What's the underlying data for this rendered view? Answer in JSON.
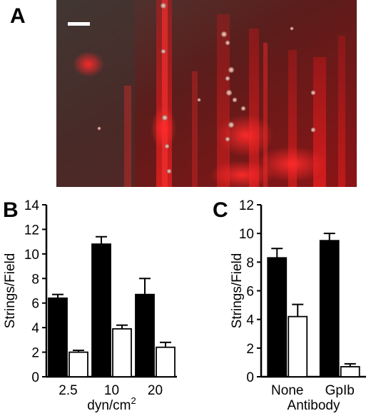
{
  "panels": {
    "a": {
      "letter": "A"
    },
    "b": {
      "letter": "B"
    },
    "c": {
      "letter": "C"
    }
  },
  "colors": {
    "micro_bg": "#3a2a28",
    "micro_red": "#e0161a",
    "filled_bar": "#000000",
    "open_bar": "#ffffff"
  },
  "chart_data": [
    {
      "type": "bar",
      "panel": "B",
      "categories": [
        "2.5",
        "10",
        "20"
      ],
      "series": [
        {
          "values": [
            6.4,
            10.8,
            6.7
          ],
          "errors": [
            0.3,
            0.6,
            1.3
          ],
          "fill": "#000000"
        },
        {
          "values": [
            2.0,
            3.9,
            2.4
          ],
          "errors": [
            0.15,
            0.3,
            0.4
          ],
          "fill": "#ffffff"
        }
      ],
      "xlabel": "dyn/cm",
      "xlabel_sup": "2",
      "ylabel": "Strings/Field",
      "ylim": [
        0,
        14
      ],
      "yticks": [
        0,
        2,
        4,
        6,
        8,
        10,
        12,
        14
      ],
      "grid": false
    },
    {
      "type": "bar",
      "panel": "C",
      "categories": [
        "None",
        "GpIb"
      ],
      "series": [
        {
          "values": [
            8.3,
            9.5
          ],
          "errors": [
            0.65,
            0.5
          ],
          "fill": "#000000"
        },
        {
          "values": [
            4.2,
            0.7
          ],
          "errors": [
            0.85,
            0.2
          ],
          "fill": "#ffffff"
        }
      ],
      "xlabel": "Antibody",
      "xlabel_sup": "",
      "ylabel": "Strings/Field",
      "ylim": [
        0,
        12
      ],
      "yticks": [
        0,
        2,
        4,
        6,
        8,
        10,
        12
      ],
      "grid": false
    }
  ]
}
